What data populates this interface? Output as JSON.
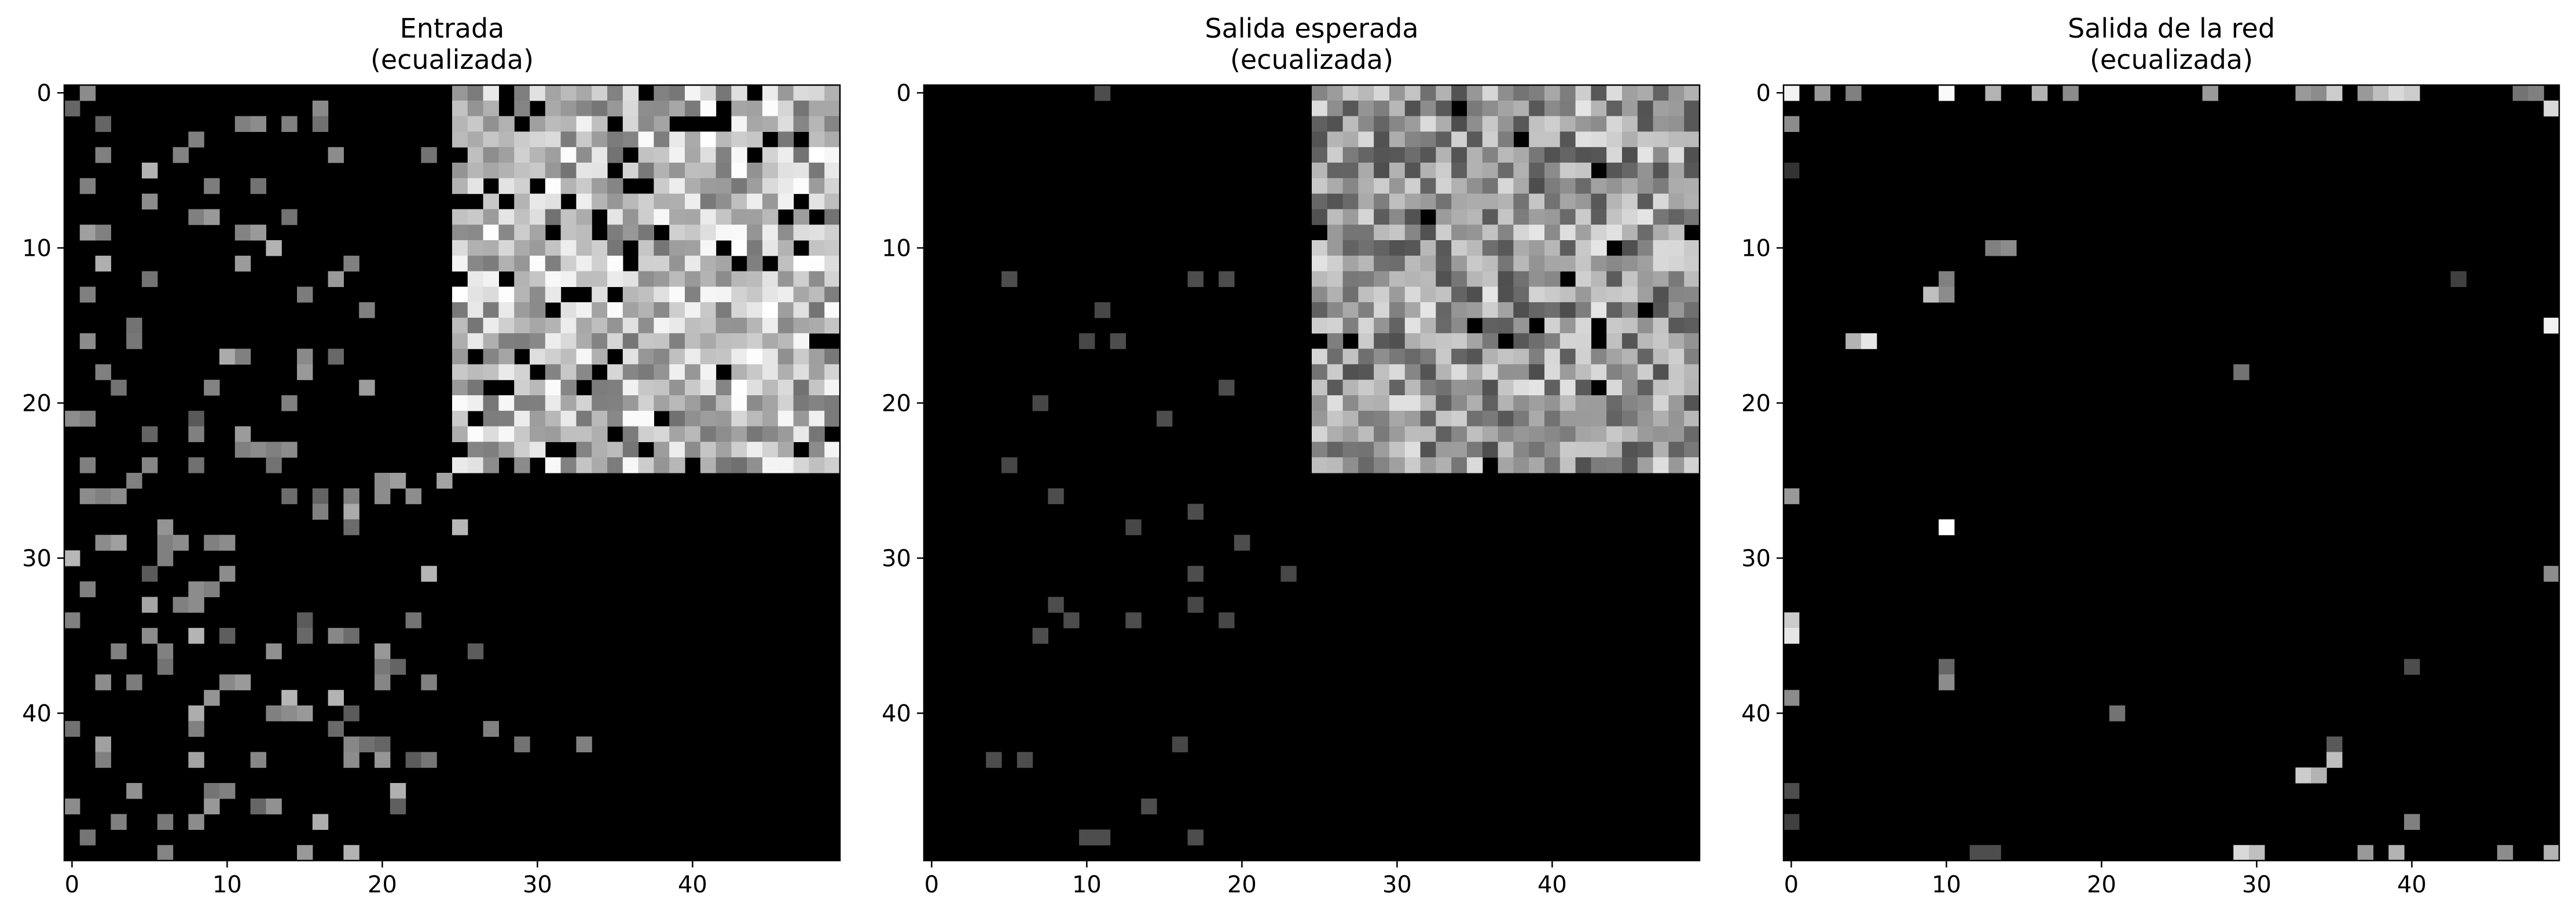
{
  "chart_data": [
    {
      "type": "heatmap",
      "title_lines": [
        "Entrada",
        "(ecualizada)"
      ],
      "shape": [
        50,
        50
      ],
      "colormap": "gray",
      "xticks": [
        0,
        10,
        20,
        30,
        40
      ],
      "yticks": [
        0,
        10,
        20,
        30,
        40
      ],
      "xlim": [
        -0.5,
        49.5
      ],
      "ylim": [
        49.5,
        -0.5
      ],
      "background_value": 0,
      "block": {
        "rows": [
          0,
          24
        ],
        "cols": [
          25,
          49
        ],
        "seed": 11,
        "dark_fraction": 0.12,
        "mean": 0.72,
        "spread": 0.28
      },
      "cells": [
        [
          0,
          1,
          0.55
        ],
        [
          2,
          11,
          0.5
        ],
        [
          2,
          12,
          0.55
        ],
        [
          2,
          14,
          0.5
        ],
        [
          3,
          8,
          0.5
        ],
        [
          4,
          2,
          0.5
        ],
        [
          4,
          17,
          0.55
        ],
        [
          4,
          23,
          0.45
        ],
        [
          6,
          1,
          0.5
        ],
        [
          6,
          12,
          0.45
        ],
        [
          7,
          5,
          0.55
        ],
        [
          8,
          8,
          0.5
        ],
        [
          8,
          9,
          0.6
        ],
        [
          8,
          14,
          0.45
        ],
        [
          9,
          2,
          0.5
        ],
        [
          11,
          18,
          0.5
        ],
        [
          12,
          5,
          0.45
        ],
        [
          12,
          17,
          0.6
        ],
        [
          13,
          1,
          0.5
        ],
        [
          14,
          19,
          0.5
        ],
        [
          15,
          4,
          0.45
        ],
        [
          16,
          1,
          0.55
        ],
        [
          17,
          11,
          0.5
        ],
        [
          18,
          2,
          0.5
        ],
        [
          19,
          3,
          0.45
        ],
        [
          20,
          14,
          0.5
        ],
        [
          21,
          0,
          0.55
        ],
        [
          21,
          1,
          0.5
        ],
        [
          22,
          8,
          0.5
        ],
        [
          23,
          11,
          0.5
        ],
        [
          23,
          12,
          0.55
        ],
        [
          23,
          13,
          0.5
        ],
        [
          23,
          14,
          0.55
        ],
        [
          24,
          1,
          0.5
        ],
        [
          25,
          4,
          0.5
        ],
        [
          26,
          1,
          0.55
        ],
        [
          26,
          2,
          0.5
        ],
        [
          26,
          3,
          0.55
        ],
        [
          26,
          18,
          0.5
        ],
        [
          26,
          20,
          0.55
        ],
        [
          27,
          16,
          0.5
        ],
        [
          29,
          2,
          0.55
        ],
        [
          29,
          6,
          0.5
        ],
        [
          29,
          7,
          0.55
        ],
        [
          29,
          9,
          0.5
        ],
        [
          29,
          10,
          0.55
        ],
        [
          30,
          6,
          0.5
        ],
        [
          31,
          10,
          0.55
        ],
        [
          32,
          1,
          0.5
        ],
        [
          32,
          8,
          0.55
        ],
        [
          32,
          9,
          0.5
        ],
        [
          33,
          7,
          0.5
        ],
        [
          33,
          8,
          0.55
        ],
        [
          34,
          0,
          0.5
        ],
        [
          35,
          5,
          0.55
        ],
        [
          36,
          3,
          0.5
        ],
        [
          37,
          6,
          0.45
        ],
        [
          38,
          2,
          0.55
        ],
        [
          39,
          17,
          0.7
        ],
        [
          40,
          13,
          0.5
        ],
        [
          40,
          14,
          0.55
        ],
        [
          41,
          8,
          0.5
        ],
        [
          41,
          27,
          0.5
        ],
        [
          42,
          29,
          0.45
        ],
        [
          42,
          33,
          0.5
        ],
        [
          43,
          2,
          0.5
        ],
        [
          43,
          18,
          0.55
        ],
        [
          45,
          10,
          0.5
        ],
        [
          46,
          0,
          0.55
        ],
        [
          47,
          3,
          0.5
        ],
        [
          47,
          8,
          0.55
        ],
        [
          49,
          15,
          0.6
        ],
        [
          49,
          18,
          0.7
        ]
      ],
      "scatter": {
        "seed": 7,
        "region": "left_and_lower",
        "count": 90,
        "value_range": [
          0.35,
          0.72
        ]
      }
    },
    {
      "type": "heatmap",
      "title_lines": [
        "Salida esperada",
        "(ecualizada)"
      ],
      "shape": [
        50,
        50
      ],
      "colormap": "gray",
      "xticks": [
        0,
        10,
        20,
        30,
        40
      ],
      "yticks": [
        0,
        10,
        20,
        30,
        40
      ],
      "xlim": [
        -0.5,
        49.5
      ],
      "ylim": [
        49.5,
        -0.5
      ],
      "background_value": 0,
      "block": {
        "rows": [
          0,
          24
        ],
        "cols": [
          25,
          49
        ],
        "seed": 23,
        "dark_fraction": 0.02,
        "mean": 0.6,
        "spread": 0.3
      },
      "cells": [
        [
          0,
          11,
          0.3
        ],
        [
          12,
          5,
          0.3
        ],
        [
          12,
          17,
          0.3
        ],
        [
          12,
          19,
          0.3
        ],
        [
          14,
          11,
          0.28
        ],
        [
          16,
          10,
          0.28
        ],
        [
          16,
          12,
          0.3
        ],
        [
          19,
          19,
          0.3
        ],
        [
          20,
          7,
          0.28
        ],
        [
          21,
          15,
          0.3
        ],
        [
          24,
          5,
          0.28
        ],
        [
          26,
          8,
          0.3
        ],
        [
          27,
          17,
          0.3
        ],
        [
          28,
          13,
          0.28
        ],
        [
          29,
          20,
          0.3
        ],
        [
          31,
          17,
          0.3
        ],
        [
          31,
          23,
          0.28
        ],
        [
          33,
          8,
          0.3
        ],
        [
          33,
          17,
          0.28
        ],
        [
          34,
          9,
          0.3
        ],
        [
          34,
          13,
          0.3
        ],
        [
          34,
          19,
          0.28
        ],
        [
          35,
          7,
          0.3
        ],
        [
          42,
          16,
          0.28
        ],
        [
          43,
          4,
          0.3
        ],
        [
          43,
          6,
          0.3
        ],
        [
          46,
          14,
          0.3
        ],
        [
          48,
          10,
          0.3
        ],
        [
          48,
          11,
          0.3
        ],
        [
          48,
          17,
          0.3
        ]
      ],
      "scatter": null
    },
    {
      "type": "heatmap",
      "title_lines": [
        "Salida de la red",
        "(ecualizada)"
      ],
      "shape": [
        50,
        50
      ],
      "colormap": "gray",
      "xticks": [
        0,
        10,
        20,
        30,
        40
      ],
      "yticks": [
        0,
        10,
        20,
        30,
        40
      ],
      "xlim": [
        -0.5,
        49.5
      ],
      "ylim": [
        49.5,
        -0.5
      ],
      "background_value": 0,
      "block": null,
      "cells": [
        [
          0,
          0,
          0.95
        ],
        [
          0,
          2,
          0.6
        ],
        [
          0,
          4,
          0.5
        ],
        [
          0,
          10,
          0.98
        ],
        [
          0,
          13,
          0.7
        ],
        [
          0,
          16,
          0.7
        ],
        [
          0,
          18,
          0.55
        ],
        [
          0,
          27,
          0.6
        ],
        [
          0,
          33,
          0.6
        ],
        [
          0,
          34,
          0.55
        ],
        [
          0,
          35,
          0.8
        ],
        [
          0,
          37,
          0.6
        ],
        [
          0,
          38,
          0.75
        ],
        [
          0,
          39,
          0.85
        ],
        [
          0,
          40,
          0.8
        ],
        [
          0,
          47,
          0.45
        ],
        [
          0,
          48,
          0.5
        ],
        [
          1,
          49,
          0.85
        ],
        [
          2,
          0,
          0.55
        ],
        [
          5,
          0,
          0.2
        ],
        [
          10,
          13,
          0.5
        ],
        [
          10,
          14,
          0.55
        ],
        [
          12,
          10,
          0.5
        ],
        [
          12,
          43,
          0.25
        ],
        [
          13,
          9,
          0.75
        ],
        [
          13,
          10,
          0.55
        ],
        [
          15,
          49,
          0.95
        ],
        [
          16,
          4,
          0.7
        ],
        [
          16,
          5,
          0.9
        ],
        [
          18,
          29,
          0.45
        ],
        [
          26,
          0,
          0.6
        ],
        [
          28,
          10,
          1.0
        ],
        [
          31,
          49,
          0.55
        ],
        [
          34,
          0,
          0.8
        ],
        [
          35,
          0,
          0.9
        ],
        [
          37,
          10,
          0.4
        ],
        [
          37,
          40,
          0.3
        ],
        [
          38,
          10,
          0.55
        ],
        [
          39,
          0,
          0.55
        ],
        [
          40,
          21,
          0.45
        ],
        [
          42,
          35,
          0.35
        ],
        [
          43,
          35,
          0.75
        ],
        [
          44,
          33,
          0.8
        ],
        [
          44,
          34,
          0.7
        ],
        [
          45,
          0,
          0.3
        ],
        [
          47,
          0,
          0.25
        ],
        [
          47,
          40,
          0.5
        ],
        [
          49,
          12,
          0.3
        ],
        [
          49,
          13,
          0.3
        ],
        [
          49,
          29,
          0.85
        ],
        [
          49,
          30,
          0.75
        ],
        [
          49,
          37,
          0.6
        ],
        [
          49,
          39,
          0.7
        ],
        [
          49,
          46,
          0.55
        ],
        [
          49,
          49,
          0.7
        ]
      ],
      "scatter": null
    }
  ]
}
